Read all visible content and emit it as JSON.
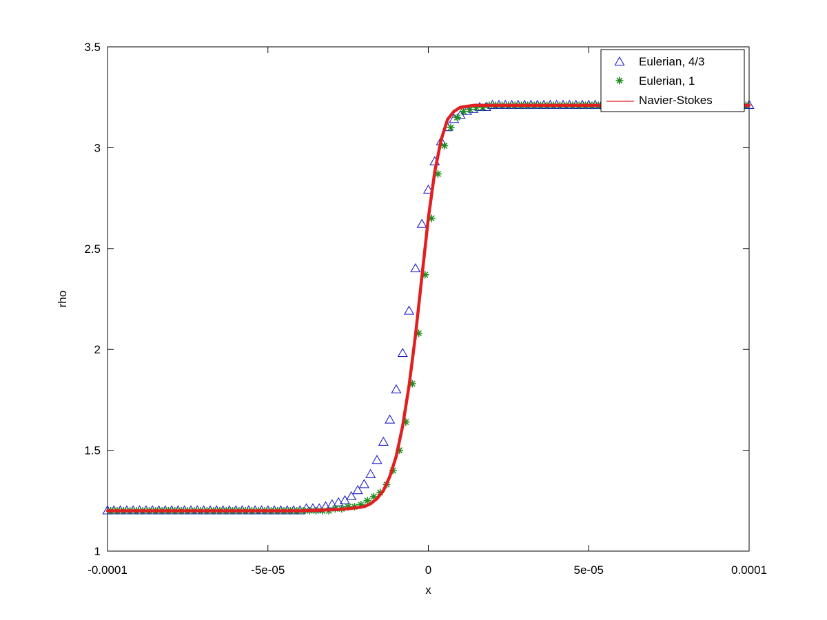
{
  "chart_data": {
    "type": "line",
    "title": "",
    "xlabel": "x",
    "ylabel": "rho",
    "xlim": [
      -0.0001,
      0.0001
    ],
    "ylim": [
      1,
      3.5
    ],
    "x_ticks": [
      -0.0001,
      -5e-05,
      0,
      5e-05,
      0.0001
    ],
    "x_tick_labels": [
      "-0.0001",
      "-5e-05",
      "0",
      "5e-05",
      "0.0001"
    ],
    "y_ticks": [
      1,
      1.5,
      2,
      2.5,
      3,
      3.5
    ],
    "y_tick_labels": [
      "1",
      "1.5",
      "2",
      "2.5",
      "3",
      "3.5"
    ],
    "grid": false,
    "legend_position": "top-right",
    "series": [
      {
        "name": "Eulerian, 4/3",
        "marker": "triangle",
        "color": "#1f1fc8",
        "x": [
          -0.0001,
          -9.8e-05,
          -9.6e-05,
          -9.4e-05,
          -9.2e-05,
          -9e-05,
          -8.8e-05,
          -8.6e-05,
          -8.4e-05,
          -8.2e-05,
          -8e-05,
          -7.8e-05,
          -7.6e-05,
          -7.4e-05,
          -7.2e-05,
          -7e-05,
          -6.8e-05,
          -6.6e-05,
          -6.4e-05,
          -6.2e-05,
          -6e-05,
          -5.8e-05,
          -5.6e-05,
          -5.4e-05,
          -5.2e-05,
          -5e-05,
          -4.8e-05,
          -4.6e-05,
          -4.4e-05,
          -4.2e-05,
          -4e-05,
          -3.8e-05,
          -3.6e-05,
          -3.4e-05,
          -3.2e-05,
          -3e-05,
          -2.8e-05,
          -2.6e-05,
          -2.4e-05,
          -2.2e-05,
          -2e-05,
          -1.8e-05,
          -1.6e-05,
          -1.4e-05,
          -1.2e-05,
          -1e-05,
          -8e-06,
          -6e-06,
          -4e-06,
          -2e-06,
          0,
          2e-06,
          4e-06,
          6e-06,
          8e-06,
          1e-05,
          1.2e-05,
          1.4e-05,
          1.6e-05,
          1.8e-05,
          2e-05,
          2.2e-05,
          2.4e-05,
          2.6e-05,
          2.8e-05,
          3e-05,
          3.2e-05,
          3.4e-05,
          3.6e-05,
          3.8e-05,
          4e-05,
          4.2e-05,
          4.4e-05,
          4.6e-05,
          4.8e-05,
          5e-05,
          5.2e-05,
          5.4e-05,
          5.6e-05,
          5.8e-05,
          6e-05,
          6.2e-05,
          6.4e-05,
          6.6e-05,
          6.8e-05,
          7e-05,
          7.2e-05,
          7.4e-05,
          7.6e-05,
          7.8e-05,
          8e-05,
          8.2e-05,
          8.4e-05,
          8.6e-05,
          8.8e-05,
          9e-05,
          9.2e-05,
          9.4e-05,
          9.6e-05,
          9.8e-05,
          0.0001
        ],
        "y": [
          1.2,
          1.2,
          1.2,
          1.2,
          1.2,
          1.2,
          1.2,
          1.2,
          1.2,
          1.2,
          1.2,
          1.2,
          1.2,
          1.2,
          1.2,
          1.2,
          1.2,
          1.2,
          1.2,
          1.2,
          1.2,
          1.2,
          1.2,
          1.2,
          1.2,
          1.2,
          1.2,
          1.2,
          1.2,
          1.2,
          1.2,
          1.21,
          1.21,
          1.21,
          1.22,
          1.23,
          1.24,
          1.25,
          1.27,
          1.3,
          1.33,
          1.38,
          1.45,
          1.54,
          1.65,
          1.8,
          1.98,
          2.19,
          2.4,
          2.62,
          2.79,
          2.93,
          3.03,
          3.1,
          3.14,
          3.16,
          3.18,
          3.19,
          3.2,
          3.2,
          3.21,
          3.21,
          3.21,
          3.21,
          3.21,
          3.21,
          3.21,
          3.21,
          3.21,
          3.21,
          3.21,
          3.21,
          3.21,
          3.21,
          3.21,
          3.21,
          3.21,
          3.21,
          3.21,
          3.21,
          3.21,
          3.21,
          3.21,
          3.21,
          3.21,
          3.21,
          3.21,
          3.21,
          3.21,
          3.21,
          3.21,
          3.21,
          3.21,
          3.21,
          3.21,
          3.21,
          3.21,
          3.21,
          3.21,
          3.21,
          3.21
        ]
      },
      {
        "name": "Eulerian, 1",
        "marker": "asterisk",
        "color": "#1e8c1e",
        "x": [
          -9.9e-05,
          -9.7e-05,
          -9.5e-05,
          -9.3e-05,
          -9.1e-05,
          -8.9e-05,
          -8.7e-05,
          -8.5e-05,
          -8.3e-05,
          -8.1e-05,
          -7.9e-05,
          -7.7e-05,
          -7.5e-05,
          -7.3e-05,
          -7.1e-05,
          -6.9e-05,
          -6.7e-05,
          -6.5e-05,
          -6.3e-05,
          -6.1e-05,
          -5.9e-05,
          -5.7e-05,
          -5.5e-05,
          -5.3e-05,
          -5.1e-05,
          -4.9e-05,
          -4.7e-05,
          -4.5e-05,
          -4.3e-05,
          -4.1e-05,
          -3.9e-05,
          -3.7e-05,
          -3.5e-05,
          -3.3e-05,
          -3.1e-05,
          -2.9e-05,
          -2.7e-05,
          -2.5e-05,
          -2.3e-05,
          -2.1e-05,
          -1.9e-05,
          -1.7e-05,
          -1.5e-05,
          -1.3e-05,
          -1.1e-05,
          -9e-06,
          -7e-06,
          -5e-06,
          -3e-06,
          -1e-06,
          1e-06,
          3e-06,
          5e-06,
          7e-06,
          9e-06,
          1.1e-05,
          1.3e-05,
          1.5e-05,
          1.7e-05,
          1.9e-05,
          2.1e-05,
          2.3e-05,
          2.5e-05,
          2.7e-05,
          2.9e-05,
          3.1e-05,
          3.3e-05,
          3.5e-05,
          3.7e-05,
          3.9e-05,
          4.1e-05,
          4.3e-05,
          4.5e-05,
          4.7e-05,
          4.9e-05,
          5.1e-05,
          5.3e-05,
          5.5e-05,
          5.7e-05,
          5.9e-05,
          6.1e-05,
          6.3e-05,
          6.5e-05,
          6.7e-05,
          6.9e-05,
          7.1e-05,
          7.3e-05,
          7.5e-05,
          7.7e-05,
          7.9e-05,
          8.1e-05,
          8.3e-05,
          8.5e-05,
          8.7e-05,
          8.9e-05,
          9.1e-05,
          9.3e-05,
          9.5e-05,
          9.7e-05,
          9.9e-05
        ],
        "y": [
          1.2,
          1.2,
          1.2,
          1.2,
          1.2,
          1.2,
          1.2,
          1.2,
          1.2,
          1.2,
          1.2,
          1.2,
          1.2,
          1.2,
          1.2,
          1.2,
          1.2,
          1.2,
          1.2,
          1.2,
          1.2,
          1.2,
          1.2,
          1.2,
          1.2,
          1.2,
          1.2,
          1.2,
          1.2,
          1.2,
          1.2,
          1.2,
          1.2,
          1.2,
          1.2,
          1.21,
          1.21,
          1.22,
          1.22,
          1.23,
          1.25,
          1.27,
          1.29,
          1.33,
          1.4,
          1.5,
          1.64,
          1.83,
          2.08,
          2.37,
          2.65,
          2.87,
          3.01,
          3.1,
          3.15,
          3.18,
          3.19,
          3.2,
          3.2,
          3.21,
          3.21,
          3.21,
          3.21,
          3.21,
          3.21,
          3.21,
          3.21,
          3.21,
          3.21,
          3.21,
          3.21,
          3.21,
          3.21,
          3.21,
          3.21,
          3.21,
          3.21,
          3.21,
          3.21,
          3.21,
          3.21,
          3.21,
          3.21,
          3.21,
          3.21,
          3.21,
          3.21,
          3.21,
          3.21,
          3.21,
          3.21,
          3.21,
          3.21,
          3.21,
          3.21,
          3.21,
          3.21,
          3.21,
          3.21,
          3.21
        ]
      },
      {
        "name": "Navier-Stokes",
        "marker": "line",
        "color": "#e02020",
        "x": [
          -0.0001,
          -6e-05,
          -4e-05,
          -3e-05,
          -2.5e-05,
          -2e-05,
          -1.8e-05,
          -1.6e-05,
          -1.4e-05,
          -1.2e-05,
          -1e-05,
          -8e-06,
          -6e-06,
          -4e-06,
          -2e-06,
          0,
          2e-06,
          4e-06,
          6e-06,
          8e-06,
          1e-05,
          1.2e-05,
          1.4e-05,
          1.6e-05,
          2e-05,
          2.5e-05,
          3e-05,
          4e-05,
          6e-05,
          0.0001
        ],
        "y": [
          1.2,
          1.2,
          1.2,
          1.205,
          1.21,
          1.22,
          1.235,
          1.26,
          1.3,
          1.37,
          1.47,
          1.62,
          1.82,
          2.07,
          2.36,
          2.65,
          2.88,
          3.04,
          3.14,
          3.18,
          3.2,
          3.205,
          3.21,
          3.21,
          3.21,
          3.21,
          3.21,
          3.21,
          3.21,
          3.21
        ]
      }
    ]
  }
}
